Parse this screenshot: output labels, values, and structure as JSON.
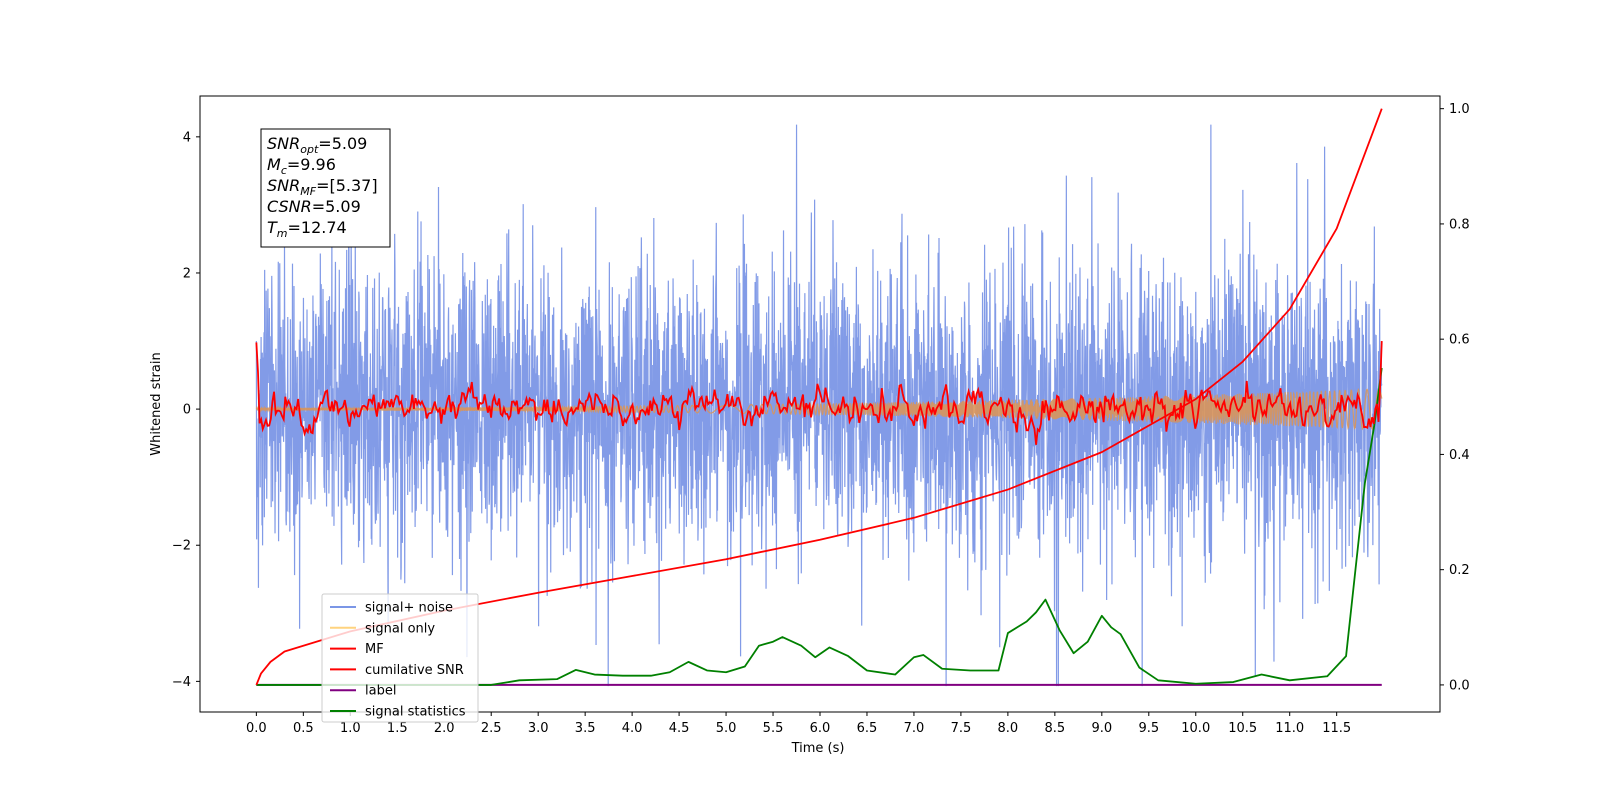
{
  "chart_data": {
    "type": "line",
    "xlabel": "Time (s)",
    "ylabel": "Whitened strain",
    "xlim": [
      -0.6,
      12.6
    ],
    "ylim": [
      -4.45,
      4.6
    ],
    "y2lim": [
      -0.047,
      1.022
    ],
    "x_ticks": [
      "0.0",
      "0.5",
      "1.0",
      "1.5",
      "2.0",
      "2.5",
      "3.0",
      "3.5",
      "4.0",
      "4.5",
      "5.0",
      "5.5",
      "6.0",
      "6.5",
      "7.0",
      "7.5",
      "8.0",
      "8.5",
      "9.0",
      "9.5",
      "10.0",
      "10.5",
      "11.0",
      "11.5"
    ],
    "y_ticks": [
      -4,
      -2,
      0,
      2,
      4
    ],
    "y_tick_labels": [
      "−4",
      "−2",
      "0",
      "2",
      "4"
    ],
    "y2_ticks": [
      0.0,
      0.2,
      0.4,
      0.6,
      0.8,
      1.0
    ],
    "y2_tick_labels": [
      "0.0",
      "0.2",
      "0.4",
      "0.6",
      "0.8",
      "1.0"
    ],
    "annotation": {
      "lines": [
        {
          "base": "SNR",
          "sub": "opt",
          "value": "=5.09"
        },
        {
          "base": "M",
          "sub": "c",
          "value": "=9.96"
        },
        {
          "base": "SNR",
          "sub": "MF",
          "value": "=[5.37]"
        },
        {
          "base": "CSNR",
          "sub": "",
          "value": "=5.09"
        },
        {
          "base": "T",
          "sub": "m",
          "value": "=12.74"
        }
      ]
    },
    "legend_position": "lower-left",
    "series": [
      {
        "name": "signal+ noise",
        "color": "#7b96e6",
        "axis": "left",
        "x_range": [
          0.0,
          11.98
        ],
        "y_range": [
          -4.07,
          4.18
        ],
        "note": "dense noise trace centered near 0"
      },
      {
        "name": "signal only",
        "color": "#ffd37f",
        "axis": "left",
        "x_range": [
          0.0,
          11.98
        ],
        "amplitude_start": 0.02,
        "amplitude_end": 0.3
      },
      {
        "name": "MF",
        "color": "#ff0000",
        "axis": "left",
        "x_range": [
          0.0,
          11.98
        ],
        "start": 0.98,
        "end": 1.0
      },
      {
        "name": "cumilative SNR",
        "color": "#ff0000",
        "axis": "right",
        "x": [
          0.0,
          1.0,
          2.0,
          3.0,
          4.0,
          5.0,
          6.0,
          7.0,
          8.0,
          9.0,
          10.0,
          10.5,
          11.0,
          11.5,
          11.98
        ],
        "y": [
          0.0,
          0.093,
          0.129,
          0.16,
          0.189,
          0.218,
          0.252,
          0.29,
          0.339,
          0.404,
          0.496,
          0.561,
          0.652,
          0.792,
          1.0
        ]
      },
      {
        "name": "label",
        "color": "#800080",
        "axis": "right",
        "x": [
          0.0,
          11.98
        ],
        "y": [
          0.0,
          0.0
        ]
      },
      {
        "name": "signal statistics",
        "color": "#008000",
        "axis": "right",
        "x": [
          0.0,
          2.5,
          2.8,
          3.2,
          3.4,
          3.6,
          3.9,
          4.2,
          4.4,
          4.6,
          4.8,
          5.0,
          5.2,
          5.35,
          5.5,
          5.6,
          5.8,
          5.95,
          6.1,
          6.3,
          6.5,
          6.8,
          7.0,
          7.1,
          7.3,
          7.6,
          7.9,
          8.0,
          8.1,
          8.2,
          8.3,
          8.4,
          8.55,
          8.7,
          8.85,
          9.0,
          9.1,
          9.2,
          9.4,
          9.6,
          10.0,
          10.4,
          10.7,
          11.0,
          11.4,
          11.6,
          11.8,
          11.9,
          11.98
        ],
        "y": [
          0.0,
          0.0,
          0.008,
          0.01,
          0.026,
          0.018,
          0.016,
          0.016,
          0.022,
          0.04,
          0.025,
          0.022,
          0.032,
          0.068,
          0.075,
          0.083,
          0.068,
          0.048,
          0.065,
          0.05,
          0.025,
          0.018,
          0.048,
          0.052,
          0.028,
          0.025,
          0.025,
          0.09,
          0.1,
          0.11,
          0.126,
          0.148,
          0.095,
          0.055,
          0.075,
          0.12,
          0.1,
          0.088,
          0.03,
          0.008,
          0.002,
          0.005,
          0.018,
          0.008,
          0.015,
          0.05,
          0.35,
          0.45,
          0.55
        ]
      }
    ]
  }
}
